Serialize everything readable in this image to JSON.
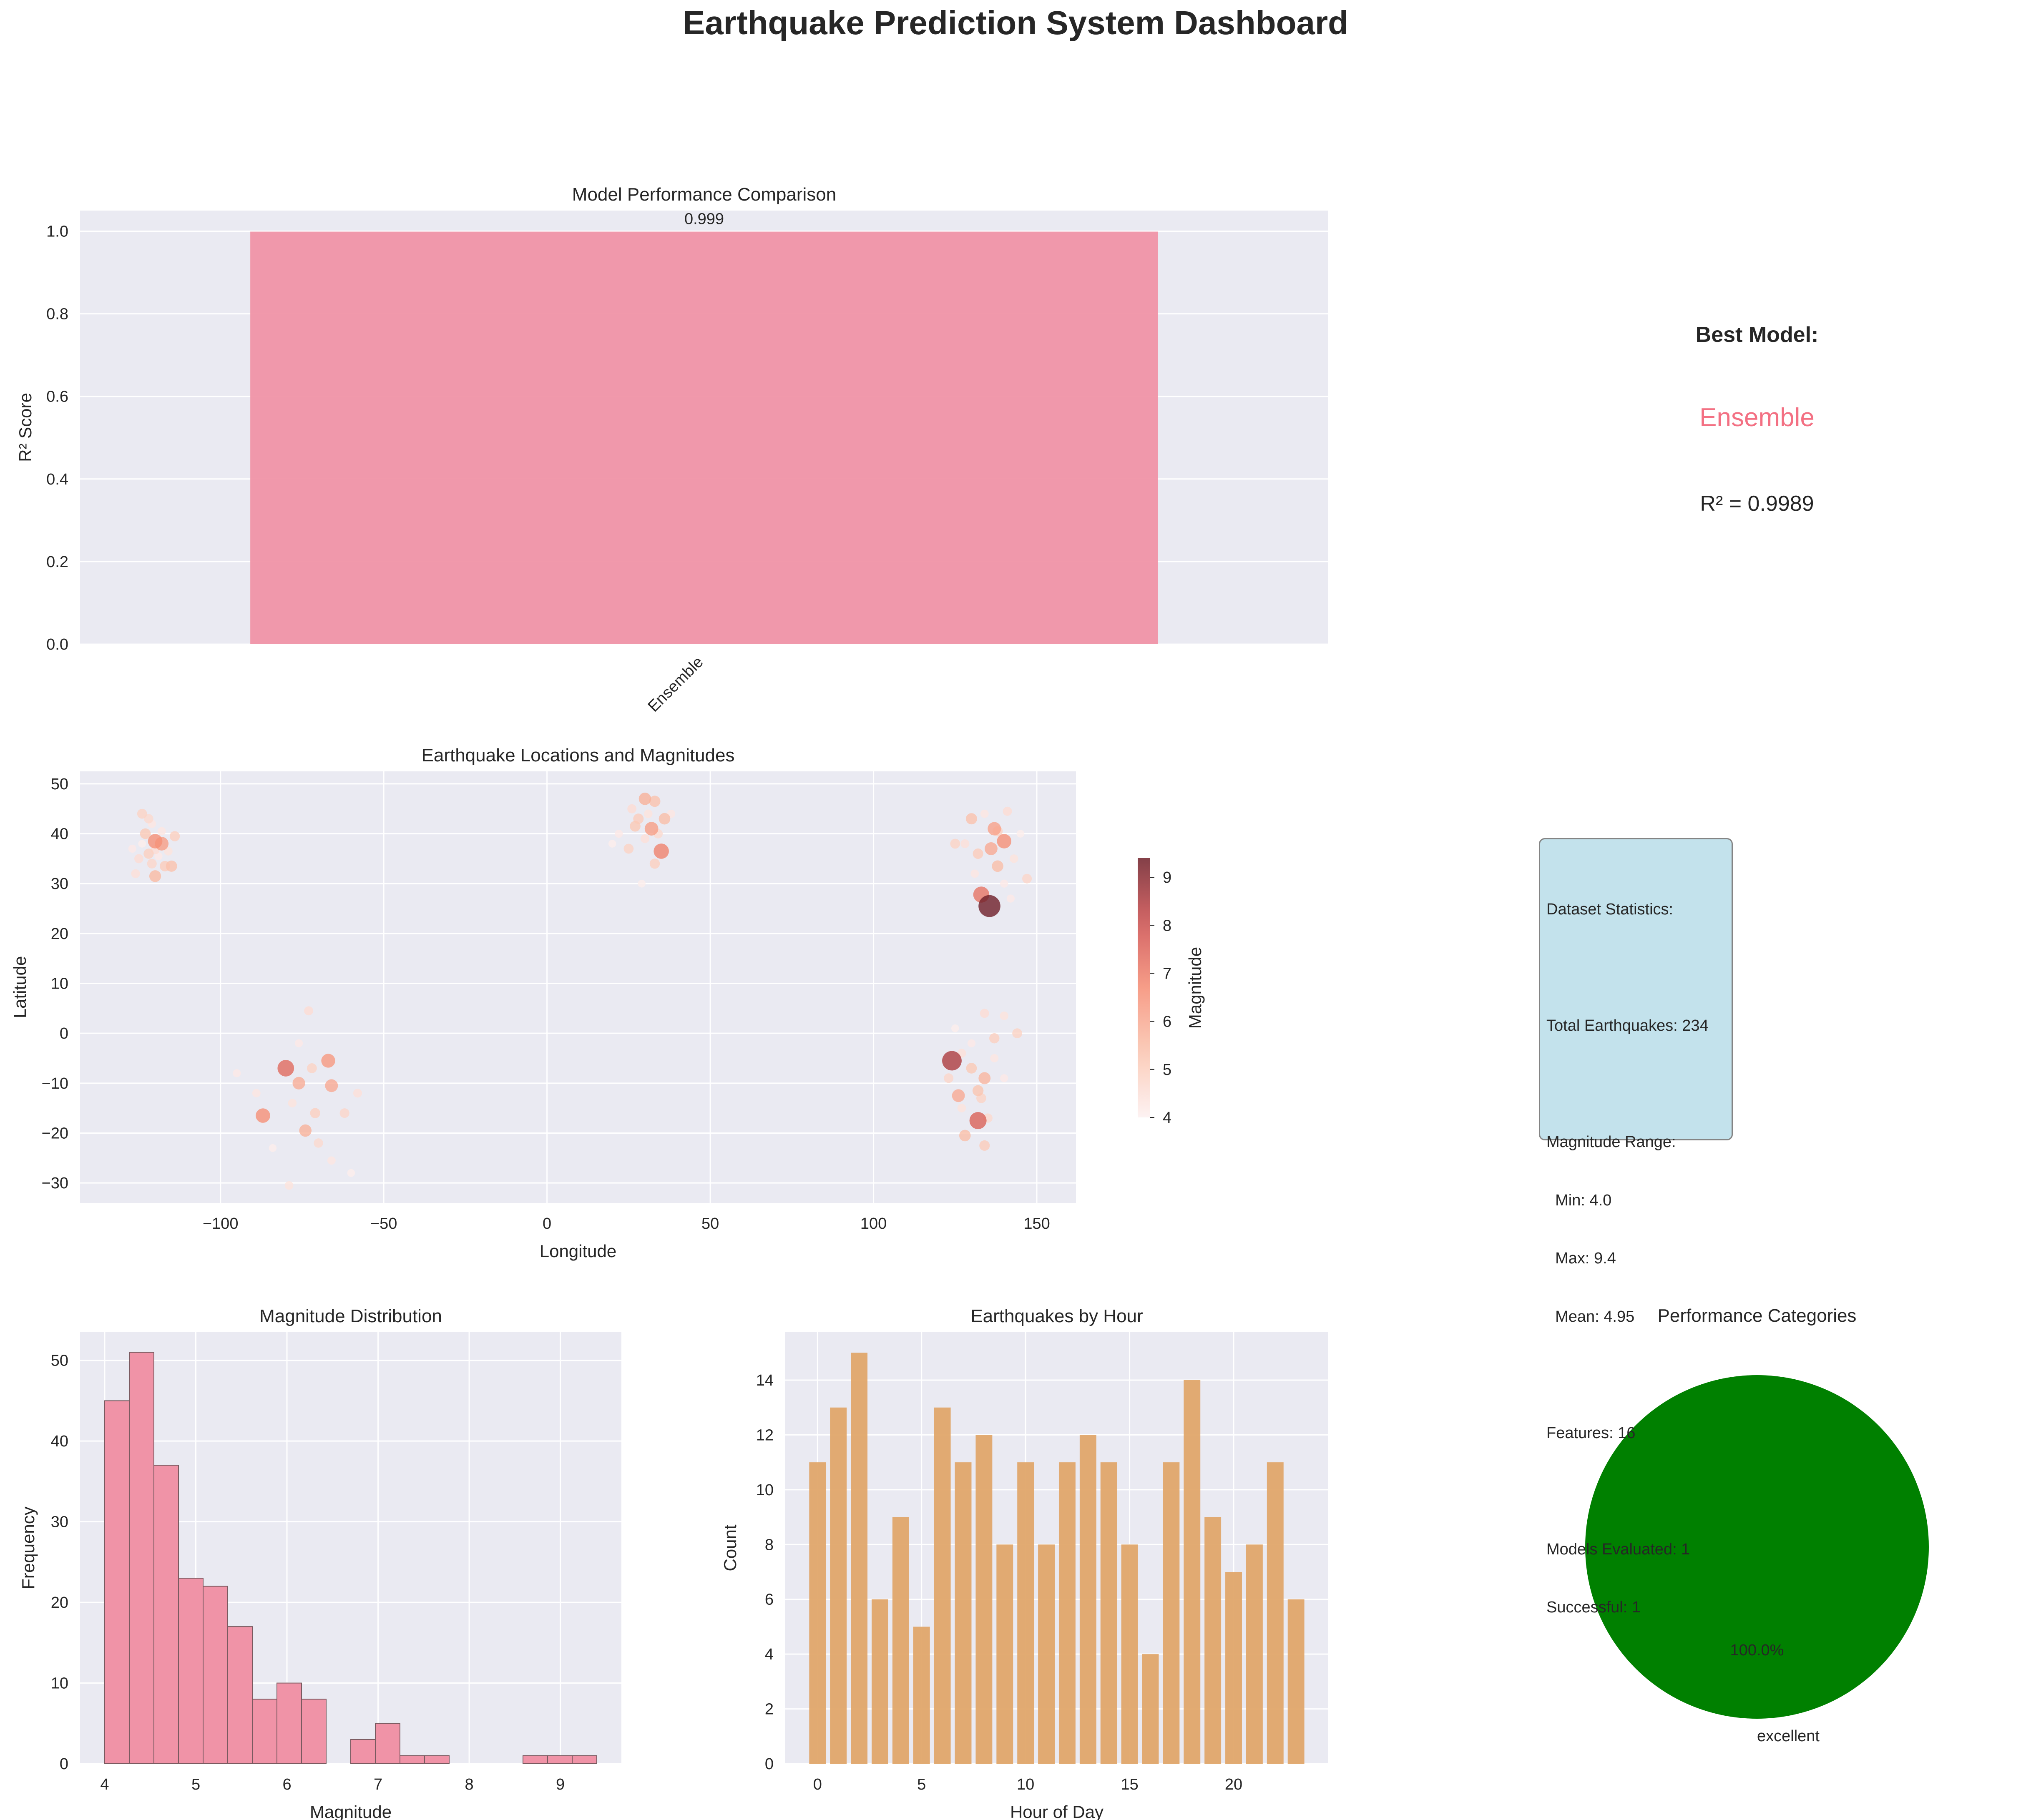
{
  "title": "Earthquake Prediction System Dashboard",
  "colors": {
    "axes_bg": "#eaeaf2",
    "grid": "#ffffff",
    "pink": "#f093a7",
    "pink_hist": "#f093a7",
    "hour_bar": "#e0a66a",
    "best_model": "#f37083",
    "pie": "#008000",
    "colorbar_low": "#fbeeee",
    "colorbar_high": "#7f3f47"
  },
  "best_model": {
    "heading": "Best Model:",
    "name": "Ensemble",
    "score": "R² = 0.9989"
  },
  "stats": {
    "lines": [
      "Dataset Statistics:",
      "",
      "Total Earthquakes: 234",
      "",
      "Magnitude Range:",
      "  Min: 4.0",
      "  Max: 9.4",
      "  Mean: 4.95",
      "",
      "Features: 16",
      "",
      "Models Evaluated: 1",
      "Successful: 1"
    ]
  },
  "chart_data": [
    {
      "id": "performance",
      "type": "bar",
      "title": "Model Performance Comparison",
      "ylabel": "R² Score",
      "xlabel": "",
      "categories": [
        "Ensemble"
      ],
      "values": [
        0.999
      ],
      "data_labels": [
        "0.999"
      ],
      "ylim": [
        0,
        1.05
      ],
      "yticks": [
        0.0,
        0.2,
        0.4,
        0.6,
        0.8,
        1.0
      ],
      "ytick_labels": [
        "0.0",
        "0.2",
        "0.4",
        "0.6",
        "0.8",
        "1.0"
      ],
      "grid": true
    },
    {
      "id": "locations",
      "type": "scatter",
      "title": "Earthquake Locations and Magnitudes",
      "xlabel": "Longitude",
      "ylabel": "Latitude",
      "xlim": [
        -143,
        162
      ],
      "ylim": [
        -34,
        52.5
      ],
      "xticks": [
        -100,
        -50,
        0,
        50,
        100,
        150
      ],
      "xtick_labels": [
        "−100",
        "−50",
        "0",
        "50",
        "100",
        "150"
      ],
      "yticks": [
        -30,
        -20,
        -10,
        0,
        10,
        20,
        30,
        40,
        50
      ],
      "ytick_labels": [
        "−30",
        "−20",
        "−10",
        "0",
        "10",
        "20",
        "30",
        "40",
        "50"
      ],
      "colorbar": {
        "label": "Magnitude",
        "range": [
          4.0,
          9.4
        ],
        "ticks": [
          4,
          5,
          6,
          7,
          8,
          9
        ],
        "tick_labels": [
          "4",
          "5",
          "6",
          "7",
          "8",
          "9"
        ]
      },
      "grid": true,
      "points": [
        {
          "lon": -124,
          "lat": 44,
          "mag": 4.9
        },
        {
          "lon": -121,
          "lat": 42,
          "mag": 4.3
        },
        {
          "lon": -123,
          "lat": 40,
          "mag": 5.2
        },
        {
          "lon": -120,
          "lat": 38.5,
          "mag": 6.6
        },
        {
          "lon": -118,
          "lat": 38,
          "mag": 6.3
        },
        {
          "lon": -122,
          "lat": 36,
          "mag": 5.0
        },
        {
          "lon": -125,
          "lat": 35,
          "mag": 4.6
        },
        {
          "lon": -119,
          "lat": 35.5,
          "mag": 4.2
        },
        {
          "lon": -117,
          "lat": 33.5,
          "mag": 5.1
        },
        {
          "lon": -120,
          "lat": 31.5,
          "mag": 5.6
        },
        {
          "lon": -126,
          "lat": 32,
          "mag": 4.5
        },
        {
          "lon": -114,
          "lat": 39.5,
          "mag": 5.0
        },
        {
          "lon": -116,
          "lat": 36.5,
          "mag": 4.4
        },
        {
          "lon": -124,
          "lat": 38,
          "mag": 4.1
        },
        {
          "lon": -121,
          "lat": 34,
          "mag": 4.8
        },
        {
          "lon": -118,
          "lat": 40.5,
          "mag": 4.3
        },
        {
          "lon": -122,
          "lat": 43,
          "mag": 4.7
        },
        {
          "lon": -115,
          "lat": 33.5,
          "mag": 5.4
        },
        {
          "lon": -127,
          "lat": 37,
          "mag": 4.2
        },
        {
          "lon": -120,
          "lat": 36.8,
          "mag": 4.6
        },
        {
          "lon": 26,
          "lat": 45,
          "mag": 4.6
        },
        {
          "lon": 30,
          "lat": 47,
          "mag": 5.8
        },
        {
          "lon": 33,
          "lat": 46.5,
          "mag": 5.4
        },
        {
          "lon": 28,
          "lat": 43,
          "mag": 5.1
        },
        {
          "lon": 32,
          "lat": 41,
          "mag": 6.3
        },
        {
          "lon": 36,
          "lat": 43,
          "mag": 5.5
        },
        {
          "lon": 35,
          "lat": 36.5,
          "mag": 6.9
        },
        {
          "lon": 25,
          "lat": 37,
          "mag": 4.9
        },
        {
          "lon": 30,
          "lat": 39,
          "mag": 4.5
        },
        {
          "lon": 38,
          "lat": 44,
          "mag": 4.3
        },
        {
          "lon": 22,
          "lat": 40,
          "mag": 4.2
        },
        {
          "lon": 33,
          "lat": 34,
          "mag": 5.0
        },
        {
          "lon": 29,
          "lat": 30,
          "mag": 4.1
        },
        {
          "lon": 34,
          "lat": 40,
          "mag": 4.7
        },
        {
          "lon": 27,
          "lat": 41.5,
          "mag": 5.2
        },
        {
          "lon": 31,
          "lat": 44,
          "mag": 4.4
        },
        {
          "lon": 20,
          "lat": 38,
          "mag": 4.1
        },
        {
          "lon": -95,
          "lat": -8,
          "mag": 4.2
        },
        {
          "lon": -87,
          "lat": -16.5,
          "mag": 6.6
        },
        {
          "lon": -80,
          "lat": -7,
          "mag": 7.4
        },
        {
          "lon": -76,
          "lat": -10,
          "mag": 5.9
        },
        {
          "lon": -72,
          "lat": -7,
          "mag": 4.9
        },
        {
          "lon": -67,
          "lat": -5.5,
          "mag": 6.4
        },
        {
          "lon": -66,
          "lat": -10.5,
          "mag": 6.0
        },
        {
          "lon": -62,
          "lat": -16,
          "mag": 4.8
        },
        {
          "lon": -58,
          "lat": -12,
          "mag": 4.5
        },
        {
          "lon": -74,
          "lat": -19.5,
          "mag": 5.8
        },
        {
          "lon": -78,
          "lat": -14,
          "mag": 4.4
        },
        {
          "lon": -84,
          "lat": -23,
          "mag": 4.1
        },
        {
          "lon": -70,
          "lat": -22,
          "mag": 4.7
        },
        {
          "lon": -66,
          "lat": -25.5,
          "mag": 4.3
        },
        {
          "lon": -73,
          "lat": 4.5,
          "mag": 4.6
        },
        {
          "lon": -76,
          "lat": -2,
          "mag": 4.2
        },
        {
          "lon": -60,
          "lat": -28,
          "mag": 4.1
        },
        {
          "lon": -79,
          "lat": -30.5,
          "mag": 4.4
        },
        {
          "lon": -89,
          "lat": -12,
          "mag": 4.3
        },
        {
          "lon": -71,
          "lat": -16,
          "mag": 5.0
        },
        {
          "lon": 130,
          "lat": 43,
          "mag": 5.4
        },
        {
          "lon": 134,
          "lat": 44,
          "mag": 4.3
        },
        {
          "lon": 137,
          "lat": 41,
          "mag": 6.2
        },
        {
          "lon": 141,
          "lat": 44.5,
          "mag": 4.6
        },
        {
          "lon": 128,
          "lat": 38,
          "mag": 4.5
        },
        {
          "lon": 132,
          "lat": 36,
          "mag": 5.1
        },
        {
          "lon": 136,
          "lat": 37,
          "mag": 6.0
        },
        {
          "lon": 140,
          "lat": 38.5,
          "mag": 6.6
        },
        {
          "lon": 143,
          "lat": 35,
          "mag": 4.4
        },
        {
          "lon": 147,
          "lat": 31,
          "mag": 4.8
        },
        {
          "lon": 138,
          "lat": 33.5,
          "mag": 5.5
        },
        {
          "lon": 140,
          "lat": 30,
          "mag": 4.2
        },
        {
          "lon": 133,
          "lat": 27.8,
          "mag": 7.2
        },
        {
          "lon": 135.5,
          "lat": 25.5,
          "mag": 9.4
        },
        {
          "lon": 125,
          "lat": 38,
          "mag": 4.9
        },
        {
          "lon": 145,
          "lat": 40,
          "mag": 4.1
        },
        {
          "lon": 131,
          "lat": 32,
          "mag": 4.3
        },
        {
          "lon": 138,
          "lat": 40.5,
          "mag": 5.0
        },
        {
          "lon": 142,
          "lat": 27,
          "mag": 4.2
        },
        {
          "lon": 124,
          "lat": -5.5,
          "mag": 8.5
        },
        {
          "lon": 127,
          "lat": -4,
          "mag": 4.5
        },
        {
          "lon": 123,
          "lat": -9,
          "mag": 4.8
        },
        {
          "lon": 130,
          "lat": -2,
          "mag": 4.2
        },
        {
          "lon": 134,
          "lat": 4,
          "mag": 4.6
        },
        {
          "lon": 140,
          "lat": 3.5,
          "mag": 4.4
        },
        {
          "lon": 144,
          "lat": 0,
          "mag": 4.9
        },
        {
          "lon": 137,
          "lat": -1,
          "mag": 5.0
        },
        {
          "lon": 126,
          "lat": -12.5,
          "mag": 6.0
        },
        {
          "lon": 132,
          "lat": -11.5,
          "mag": 5.3
        },
        {
          "lon": 134,
          "lat": -9,
          "mag": 5.7
        },
        {
          "lon": 128,
          "lat": -20.5,
          "mag": 5.5
        },
        {
          "lon": 132,
          "lat": -17.5,
          "mag": 7.6
        },
        {
          "lon": 135,
          "lat": -17,
          "mag": 4.7
        },
        {
          "lon": 134,
          "lat": -22.5,
          "mag": 5.1
        },
        {
          "lon": 137,
          "lat": -5,
          "mag": 4.3
        },
        {
          "lon": 140,
          "lat": -9,
          "mag": 4.2
        },
        {
          "lon": 125,
          "lat": 1,
          "mag": 4.1
        },
        {
          "lon": 130,
          "lat": -7,
          "mag": 5.2
        },
        {
          "lon": 127,
          "lat": -15,
          "mag": 4.4
        },
        {
          "lon": 133,
          "lat": -13,
          "mag": 4.9
        }
      ]
    },
    {
      "id": "magnitude",
      "type": "bar",
      "title": "Magnitude Distribution",
      "xlabel": "Magnitude",
      "ylabel": "Frequency",
      "bin_edges": [
        4.0,
        4.27,
        4.54,
        4.81,
        5.08,
        5.35,
        5.62,
        5.89,
        6.16,
        6.43,
        6.7,
        6.97,
        7.24,
        7.51,
        7.78,
        8.05,
        8.32,
        8.59,
        8.86,
        9.13,
        9.4
      ],
      "values": [
        45,
        51,
        37,
        23,
        22,
        17,
        8,
        10,
        8,
        0,
        3,
        5,
        1,
        1,
        0,
        0,
        0,
        1,
        1,
        1
      ],
      "xlim": [
        3.73,
        9.67
      ],
      "ylim": [
        0,
        53.5
      ],
      "xticks": [
        4,
        5,
        6,
        7,
        8,
        9
      ],
      "xtick_labels": [
        "4",
        "5",
        "6",
        "7",
        "8",
        "9"
      ],
      "yticks": [
        0,
        10,
        20,
        30,
        40,
        50
      ],
      "ytick_labels": [
        "0",
        "10",
        "20",
        "30",
        "40",
        "50"
      ],
      "grid": true
    },
    {
      "id": "hourly",
      "type": "bar",
      "title": "Earthquakes by Hour",
      "xlabel": "Hour of Day",
      "ylabel": "Count",
      "categories": [
        0,
        1,
        2,
        3,
        4,
        5,
        6,
        7,
        8,
        9,
        10,
        11,
        12,
        13,
        14,
        15,
        16,
        17,
        18,
        19,
        20,
        21,
        22,
        23
      ],
      "values": [
        11,
        13,
        15,
        6,
        9,
        5,
        13,
        11,
        12,
        8,
        11,
        8,
        11,
        12,
        11,
        8,
        4,
        11,
        14,
        9,
        7,
        8,
        11,
        6
      ],
      "xlim": [
        -1.55,
        24.55
      ],
      "ylim": [
        0,
        15.75
      ],
      "xticks": [
        0,
        5,
        10,
        15,
        20
      ],
      "xtick_labels": [
        "0",
        "5",
        "10",
        "15",
        "20"
      ],
      "yticks": [
        0,
        2,
        4,
        6,
        8,
        10,
        12,
        14
      ],
      "ytick_labels": [
        "0",
        "2",
        "4",
        "6",
        "8",
        "10",
        "12",
        "14"
      ],
      "grid": true
    },
    {
      "id": "categories",
      "type": "pie",
      "title": "Performance Categories",
      "labels": [
        "excellent"
      ],
      "values": [
        1
      ],
      "pct_labels": [
        "100.0%"
      ]
    }
  ]
}
